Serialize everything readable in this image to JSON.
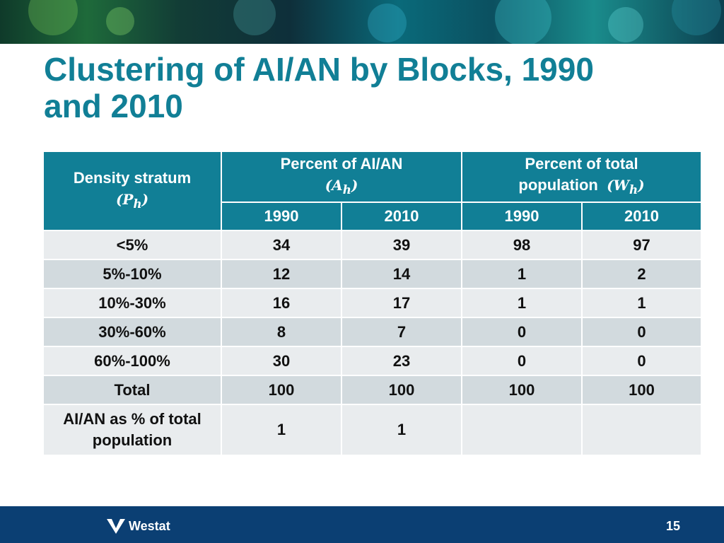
{
  "slide": {
    "title_line1": "Clustering of AI/AN by Blocks, 1990",
    "title_line2": "and 2010",
    "page_number": "15",
    "logo_text": "Westat"
  },
  "table": {
    "stratum_header": "Density stratum",
    "stratum_symbol": "(P",
    "stratum_sub": "h",
    "stratum_close": ")",
    "group1_header": "Percent of AI/AN",
    "group1_symbol": "(A",
    "group1_sub": "h",
    "group1_close": ")",
    "group2_header_line1": "Percent of total",
    "group2_header_line2": "population",
    "group2_symbol": "(W",
    "group2_sub": "h",
    "group2_close": ")",
    "years": [
      "1990",
      "2010",
      "1990",
      "2010"
    ],
    "rows": [
      {
        "label": "<5%",
        "values": [
          "34",
          "39",
          "98",
          "97"
        ]
      },
      {
        "label": "5%-10%",
        "values": [
          "12",
          "14",
          "1",
          "2"
        ]
      },
      {
        "label": "10%-30%",
        "values": [
          "16",
          "17",
          "1",
          "1"
        ]
      },
      {
        "label": "30%-60%",
        "values": [
          "8",
          "7",
          "0",
          "0"
        ]
      },
      {
        "label": "60%-100%",
        "values": [
          "30",
          "23",
          "0",
          "0"
        ]
      },
      {
        "label": "Total",
        "values": [
          "100",
          "100",
          "100",
          "100"
        ]
      }
    ],
    "last_row": {
      "label_line1": "AI/AN as % of total",
      "label_line2": "population",
      "values": [
        "1",
        "1",
        "",
        ""
      ]
    }
  },
  "colors": {
    "accent": "#117f96",
    "footer": "#0b3f73",
    "row_light": "#e9ecee",
    "row_dark": "#d2dade"
  }
}
